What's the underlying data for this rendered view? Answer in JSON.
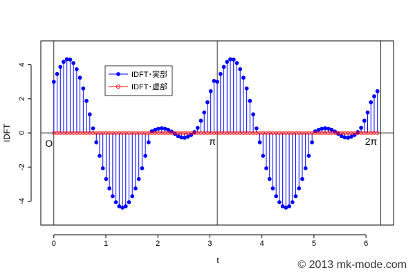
{
  "chart_data": {
    "type": "stem",
    "xlabel": "t",
    "ylabel": "IDFT",
    "xlim": [
      -0.25,
      6.53
    ],
    "ylim": [
      -5.4,
      5.4
    ],
    "xticks": [
      0,
      1,
      2,
      3,
      4,
      5,
      6
    ],
    "xtick_labels": [
      "0",
      "1",
      "2",
      "3",
      "4",
      "5",
      "6"
    ],
    "yticks": [
      -4,
      -2,
      0,
      2,
      4
    ],
    "ytick_labels": [
      "-4",
      "-2",
      "0",
      "2",
      "4"
    ],
    "grid": false,
    "reference_lines": {
      "horizontal_y": 0,
      "vertical_x": [
        0,
        3.14159,
        6.28318
      ]
    },
    "annotations": [
      {
        "text": "O",
        "x": 0
      },
      {
        "text": "π",
        "x": 3.14159
      },
      {
        "text": "2π",
        "x": 6.28318
      }
    ],
    "legend": {
      "position": "top-left",
      "entries": [
        "IDFT･実部",
        "IDFT･虚部"
      ]
    },
    "samples": 100,
    "x_step": 0.0628318,
    "series": [
      {
        "name": "IDFT･実部",
        "color": "#0000ff",
        "marker": "filled-circle",
        "values": [
          3.0,
          3.46,
          3.87,
          4.17,
          4.32,
          4.3,
          4.1,
          3.74,
          3.24,
          2.61,
          1.88,
          1.09,
          0.27,
          -0.55,
          -1.34,
          -2.07,
          -2.7,
          -3.25,
          -3.71,
          -4.06,
          -4.3,
          -4.38,
          -4.3,
          -4.06,
          -3.71,
          -3.25,
          -2.7,
          -2.07,
          -1.34,
          -0.55,
          0.1,
          0.18,
          0.25,
          0.28,
          0.25,
          0.18,
          0.08,
          -0.05,
          -0.18,
          -0.26,
          -0.28,
          -0.22,
          -0.12,
          0.05,
          0.3,
          0.72,
          1.2,
          1.8,
          2.45,
          3.05,
          3.0,
          3.46,
          3.87,
          4.17,
          4.32,
          4.3,
          4.1,
          3.74,
          3.24,
          2.61,
          1.88,
          1.09,
          0.27,
          -0.55,
          -1.34,
          -2.07,
          -2.7,
          -3.25,
          -3.71,
          -4.06,
          -4.3,
          -4.38,
          -4.3,
          -4.06,
          -3.71,
          -3.25,
          -2.7,
          -2.07,
          -1.34,
          -0.55,
          0.1,
          0.18,
          0.25,
          0.28,
          0.25,
          0.18,
          0.08,
          -0.05,
          -0.18,
          -0.26,
          -0.28,
          -0.22,
          -0.12,
          0.05,
          0.3,
          0.72,
          1.2,
          1.8,
          2.15,
          2.45
        ]
      },
      {
        "name": "IDFT･虚部",
        "color": "#ff0000",
        "marker": "open-circle",
        "constant_value": 0
      }
    ]
  },
  "footer": {
    "credit": "© 2013 mk-mode.com"
  }
}
